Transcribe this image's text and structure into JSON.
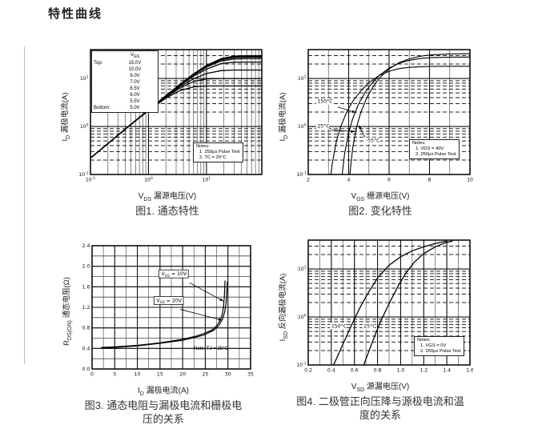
{
  "page": {
    "title": "特性曲线"
  },
  "figures": [
    {
      "caption": "图1. 通态特性",
      "x_label": {
        "base": "V",
        "sub": "DS",
        "rest": " 漏源电压(V)"
      },
      "y_label": {
        "base": "I",
        "sub": "D",
        "rest": " 漏极电流(A)"
      },
      "legend": {
        "header": {
          "base": "V",
          "sub": "GS"
        },
        "rows": [
          {
            "label": "Top:",
            "value": "15.0V"
          },
          {
            "label": "",
            "value": "10.0V"
          },
          {
            "label": "",
            "value": "8.0V"
          },
          {
            "label": "",
            "value": "7.0V"
          },
          {
            "label": "",
            "value": "6.5V"
          },
          {
            "label": "",
            "value": "6.0V"
          },
          {
            "label": "",
            "value": "5.5V"
          },
          {
            "label": "Bottom:",
            "value": "5.0V"
          }
        ]
      },
      "notes": [
        "Notes:",
        "1. 250μs Pulse Test",
        "2. TC = 25°C"
      ]
    },
    {
      "caption": "图2. 变化特性",
      "x_label": {
        "base": "V",
        "sub": "GS",
        "rest": " 栅源电压(V)"
      },
      "y_label": {
        "base": "I",
        "sub": "D",
        "rest": " 漏极电流(A)"
      },
      "notes": [
        "Notes:",
        "1. VDS = 40V",
        "2. 250μs Pulse Test"
      ]
    },
    {
      "caption": "图3. 通态电阻与漏极电流和栅极电压的关系",
      "x_label": {
        "base": "I",
        "sub": "D",
        "rest": " 漏极电流(A)"
      },
      "y_label": {
        "base": "R",
        "sub": "DS(ON)",
        "rest": " 通态电阻(Ω)"
      },
      "notes": [
        "Note: TJ = 25°C"
      ]
    },
    {
      "caption": "图4. 二极管正向压降与源极电流和温度的关系",
      "x_label": {
        "base": "V",
        "sub": "SD",
        "rest": " 源漏电压(V)"
      },
      "y_label": {
        "base": "I",
        "sub": "SD",
        "rest": " 反向漏极电流(A)"
      },
      "notes": [
        "Notes:",
        "1. VGS = 0V",
        "2. 250μs Pulse Test"
      ]
    }
  ],
  "chart_data": [
    {
      "name": "on-state-characteristics",
      "type": "line",
      "title": "图1. 通态特性",
      "xlabel": "VDS 漏源电压(V)",
      "ylabel": "ID 漏极电流(A)",
      "xlog": true,
      "ylog": true,
      "xmin": 0.1,
      "xmax": 90,
      "ymin": 0.1,
      "ymax": 40,
      "x_ticks": [
        [
          0.1,
          "-1"
        ],
        [
          1,
          "0"
        ],
        [
          10,
          "1"
        ]
      ],
      "y_ticks": [
        [
          10,
          "1"
        ],
        [
          1,
          "0"
        ],
        [
          0.1,
          "-1"
        ]
      ],
      "y_minor_dash": true,
      "x": [
        0.1,
        0.2,
        0.4,
        0.7,
        1.2,
        2,
        3.5,
        6,
        10,
        18,
        30,
        50,
        90
      ],
      "series": [
        {
          "name": "VGS=15.0V",
          "y": [
            0.22,
            0.44,
            0.89,
            1.55,
            2.65,
            4.4,
            7.6,
            12.5,
            18.8,
            26.1,
            29.3,
            30,
            30
          ]
        },
        {
          "name": "VGS=10.0V",
          "y": [
            0.22,
            0.44,
            0.89,
            1.55,
            2.64,
            4.4,
            7.5,
            12.4,
            18.5,
            25.4,
            28.5,
            29,
            29
          ]
        },
        {
          "name": "VGS=8.0V",
          "y": [
            0.22,
            0.44,
            0.89,
            1.55,
            2.64,
            4.39,
            7.5,
            12.2,
            18.1,
            24.6,
            27.5,
            28,
            28
          ]
        },
        {
          "name": "VGS=7.0V",
          "y": [
            0.22,
            0.44,
            0.89,
            1.55,
            2.63,
            4.36,
            7.4,
            11.9,
            17.3,
            23.2,
            25.5,
            26,
            26
          ]
        },
        {
          "name": "VGS=6.5V",
          "y": [
            0.22,
            0.44,
            0.89,
            1.55,
            2.62,
            4.3,
            7.2,
            11.2,
            15.7,
            20.5,
            21.9,
            22,
            22
          ]
        },
        {
          "name": "VGS=6.0V",
          "y": [
            0.22,
            0.44,
            0.89,
            1.54,
            2.6,
            4.2,
            6.8,
            9.9,
            12.7,
            14.6,
            15,
            15,
            15
          ]
        },
        {
          "name": "VGS=5.5V",
          "y": [
            0.22,
            0.44,
            0.88,
            1.53,
            2.55,
            4.1,
            6.3,
            8.7,
            9.8,
            10,
            10,
            10,
            10
          ]
        },
        {
          "name": "VGS=5.0V",
          "y": [
            0.22,
            0.44,
            0.88,
            1.52,
            2.5,
            3.9,
            5.6,
            6.7,
            7,
            7,
            7,
            7,
            7
          ]
        }
      ]
    },
    {
      "name": "transfer-characteristics",
      "type": "line",
      "title": "图2. 变化特性",
      "xlabel": "VGS 栅源电压(V)",
      "ylabel": "ID 漏极电流(A)",
      "xlog": false,
      "ylog": true,
      "xmin": 2,
      "xmax": 10,
      "ymin": 0.1,
      "ymax": 40,
      "x_ticks": [
        [
          2,
          "2"
        ],
        [
          4,
          "4"
        ],
        [
          6,
          "6"
        ],
        [
          8,
          "8"
        ],
        [
          10,
          "10"
        ]
      ],
      "y_ticks": [
        [
          10,
          "1"
        ],
        [
          1,
          "0"
        ],
        [
          0.1,
          "-1"
        ]
      ],
      "x_minor": 1,
      "y_minor_dash": true,
      "series": [
        {
          "name": "150°C",
          "points": [
            [
              3.12,
              0.1
            ],
            [
              3.2,
              0.18
            ],
            [
              3.4,
              0.5
            ],
            [
              3.6,
              0.98
            ],
            [
              3.9,
              2.0
            ],
            [
              4.2,
              3.35
            ],
            [
              4.6,
              5.5
            ],
            [
              5,
              8.2
            ],
            [
              5.5,
              11.5
            ],
            [
              6,
              14.2
            ],
            [
              6.5,
              16.1
            ],
            [
              7,
              17.1
            ],
            [
              8,
              17.9
            ],
            [
              9,
              18
            ],
            [
              10,
              18
            ]
          ]
        },
        {
          "name": "25°C",
          "points": [
            [
              3.68,
              0.1
            ],
            [
              3.8,
              0.27
            ],
            [
              4,
              0.75
            ],
            [
              4.2,
              1.47
            ],
            [
              4.5,
              3.0
            ],
            [
              4.8,
              5.0
            ],
            [
              5.1,
              7.5
            ],
            [
              5.5,
              11.5
            ],
            [
              6,
              16.5
            ],
            [
              6.5,
              20.8
            ],
            [
              7,
              23.9
            ],
            [
              7.5,
              26
            ],
            [
              8,
              27.1
            ],
            [
              9,
              27.9
            ],
            [
              10,
              28
            ]
          ]
        },
        {
          "name": "-55°C",
          "points": [
            [
              4.06,
              0.1
            ],
            [
              4.2,
              0.36
            ],
            [
              4.4,
              1.0
            ],
            [
              4.6,
              1.95
            ],
            [
              4.9,
              4.0
            ],
            [
              5.2,
              6.6
            ],
            [
              5.5,
              10
            ],
            [
              6,
              15.9
            ],
            [
              6.5,
              21.4
            ],
            [
              7,
              25.7
            ],
            [
              7.5,
              28.9
            ],
            [
              8,
              30.9
            ],
            [
              9,
              32.5
            ],
            [
              10,
              32.9
            ]
          ]
        }
      ],
      "annotations": [
        {
          "parts": [
            {
              "t": "150°C"
            }
          ],
          "x": 2.45,
          "y": 3.1,
          "arrow": [
            3.45,
            2.55,
            4.35,
            1.95
          ]
        },
        {
          "parts": [
            {
              "t": "25°C"
            }
          ],
          "x": 2.45,
          "y": 0.95,
          "arrow": [
            3.15,
            0.85,
            4.3,
            0.78
          ]
        },
        {
          "parts": [
            {
              "t": "-55°C"
            }
          ],
          "x": 4.85,
          "y": 0.47,
          "arrow": [
            4.8,
            0.6,
            4.5,
            1.05
          ]
        }
      ]
    },
    {
      "name": "rdson-vs-drain-current",
      "type": "line",
      "title": "图3. 通态电阻与漏极电流和栅极电压的关系",
      "xlabel": "ID 漏极电流(A)",
      "ylabel": "RDS(ON) 通态电阻(Ω)",
      "xlog": false,
      "ylog": false,
      "xmin": 0,
      "xmax": 35,
      "ymin": 0,
      "ymax": 2.4,
      "x_ticks": [
        [
          0,
          "0"
        ],
        [
          5,
          "5"
        ],
        [
          10,
          "10"
        ],
        [
          15,
          "15"
        ],
        [
          20,
          "20"
        ],
        [
          25,
          "25"
        ],
        [
          30,
          "30"
        ],
        [
          35,
          "35"
        ]
      ],
      "y_ticks": [
        [
          0,
          "0.0"
        ],
        [
          0.4,
          "0.4"
        ],
        [
          0.8,
          "0.8"
        ],
        [
          1.2,
          "1.2"
        ],
        [
          1.6,
          "1.6"
        ],
        [
          2,
          "2.0"
        ],
        [
          2.4,
          "2.4"
        ]
      ],
      "x_minor": 2.5,
      "y_minor": 0.2,
      "series": [
        {
          "name": "VGS=10V",
          "points": [
            [
              2,
              0.42
            ],
            [
              5,
              0.43
            ],
            [
              10,
              0.46
            ],
            [
              15,
              0.51
            ],
            [
              20,
              0.58
            ],
            [
              23,
              0.64
            ],
            [
              25,
              0.7
            ],
            [
              26.5,
              0.76
            ],
            [
              27.5,
              0.84
            ],
            [
              28.2,
              0.93
            ],
            [
              28.7,
              1.05
            ],
            [
              29,
              1.2
            ],
            [
              29.2,
              1.4
            ],
            [
              29.3,
              1.6
            ],
            [
              29.35,
              1.72
            ]
          ]
        },
        {
          "name": "VGS=20V",
          "points": [
            [
              2,
              0.41
            ],
            [
              5,
              0.42
            ],
            [
              10,
              0.45
            ],
            [
              15,
              0.5
            ],
            [
              20,
              0.56
            ],
            [
              23,
              0.62
            ],
            [
              25,
              0.67
            ],
            [
              27,
              0.76
            ],
            [
              28,
              0.85
            ],
            [
              28.8,
              0.97
            ],
            [
              29.3,
              1.12
            ],
            [
              29.6,
              1.3
            ],
            [
              29.75,
              1.5
            ],
            [
              29.85,
              1.7
            ]
          ]
        }
      ],
      "annotations": [
        {
          "parts": [
            {
              "t": "V"
            },
            {
              "t": "GS",
              "sub": true
            },
            {
              "t": " = 10V"
            }
          ],
          "x": 15.3,
          "y": 1.82,
          "boxed": true,
          "arrow": [
            21.5,
            1.68,
            29,
            1.32
          ]
        },
        {
          "parts": [
            {
              "t": "V"
            },
            {
              "t": "GS",
              "sub": true
            },
            {
              "t": " = 20V"
            }
          ],
          "x": 14.2,
          "y": 1.3,
          "boxed": true,
          "arrow": [
            19.5,
            1.16,
            28.7,
            0.95
          ]
        }
      ]
    },
    {
      "name": "diode-forward-voltage",
      "type": "line",
      "title": "图4. 二极管正向压降与源极电流和温度的关系",
      "xlabel": "VSD 源漏电压(V)",
      "ylabel": "ISD 反向漏极电流(A)",
      "xlog": false,
      "ylog": true,
      "xmin": 0.2,
      "xmax": 1.6,
      "ymin": 0.1,
      "ymax": 40,
      "x_ticks": [
        [
          0.2,
          "0.2"
        ],
        [
          0.4,
          "0.4"
        ],
        [
          0.6,
          "0.6"
        ],
        [
          0.8,
          "0.8"
        ],
        [
          1,
          "1.0"
        ],
        [
          1.2,
          "1.2"
        ],
        [
          1.4,
          "1.4"
        ],
        [
          1.6,
          "1.6"
        ]
      ],
      "y_ticks": [
        [
          10,
          "1"
        ],
        [
          1,
          "0"
        ],
        [
          0.1,
          "-1"
        ]
      ],
      "x_minor": 0.1,
      "y_minor_dash": true,
      "series": [
        {
          "name": "150°C",
          "points": [
            [
              0.42,
              0.1
            ],
            [
              0.5,
              0.27
            ],
            [
              0.58,
              0.72
            ],
            [
              0.65,
              1.6
            ],
            [
              0.72,
              3.2
            ],
            [
              0.8,
              6.5
            ],
            [
              0.9,
              12
            ],
            [
              1.0,
              18
            ],
            [
              1.1,
              24
            ],
            [
              1.2,
              29
            ],
            [
              1.3,
              34
            ],
            [
              1.4,
              38
            ]
          ]
        },
        {
          "name": "25°C",
          "points": [
            [
              0.68,
              0.1
            ],
            [
              0.75,
              0.28
            ],
            [
              0.82,
              0.75
            ],
            [
              0.9,
              1.9
            ],
            [
              0.98,
              4.5
            ],
            [
              1.05,
              8.5
            ],
            [
              1.12,
              14
            ],
            [
              1.2,
              21
            ],
            [
              1.3,
              29
            ],
            [
              1.4,
              36
            ],
            [
              1.45,
              38
            ]
          ]
        }
      ],
      "annotations": [
        {
          "parts": [
            {
              "t": "150°C"
            }
          ],
          "x": 0.4,
          "y": 0.6
        },
        {
          "parts": [
            {
              "t": "25°C"
            }
          ],
          "x": 0.68,
          "y": 0.6
        }
      ]
    }
  ]
}
